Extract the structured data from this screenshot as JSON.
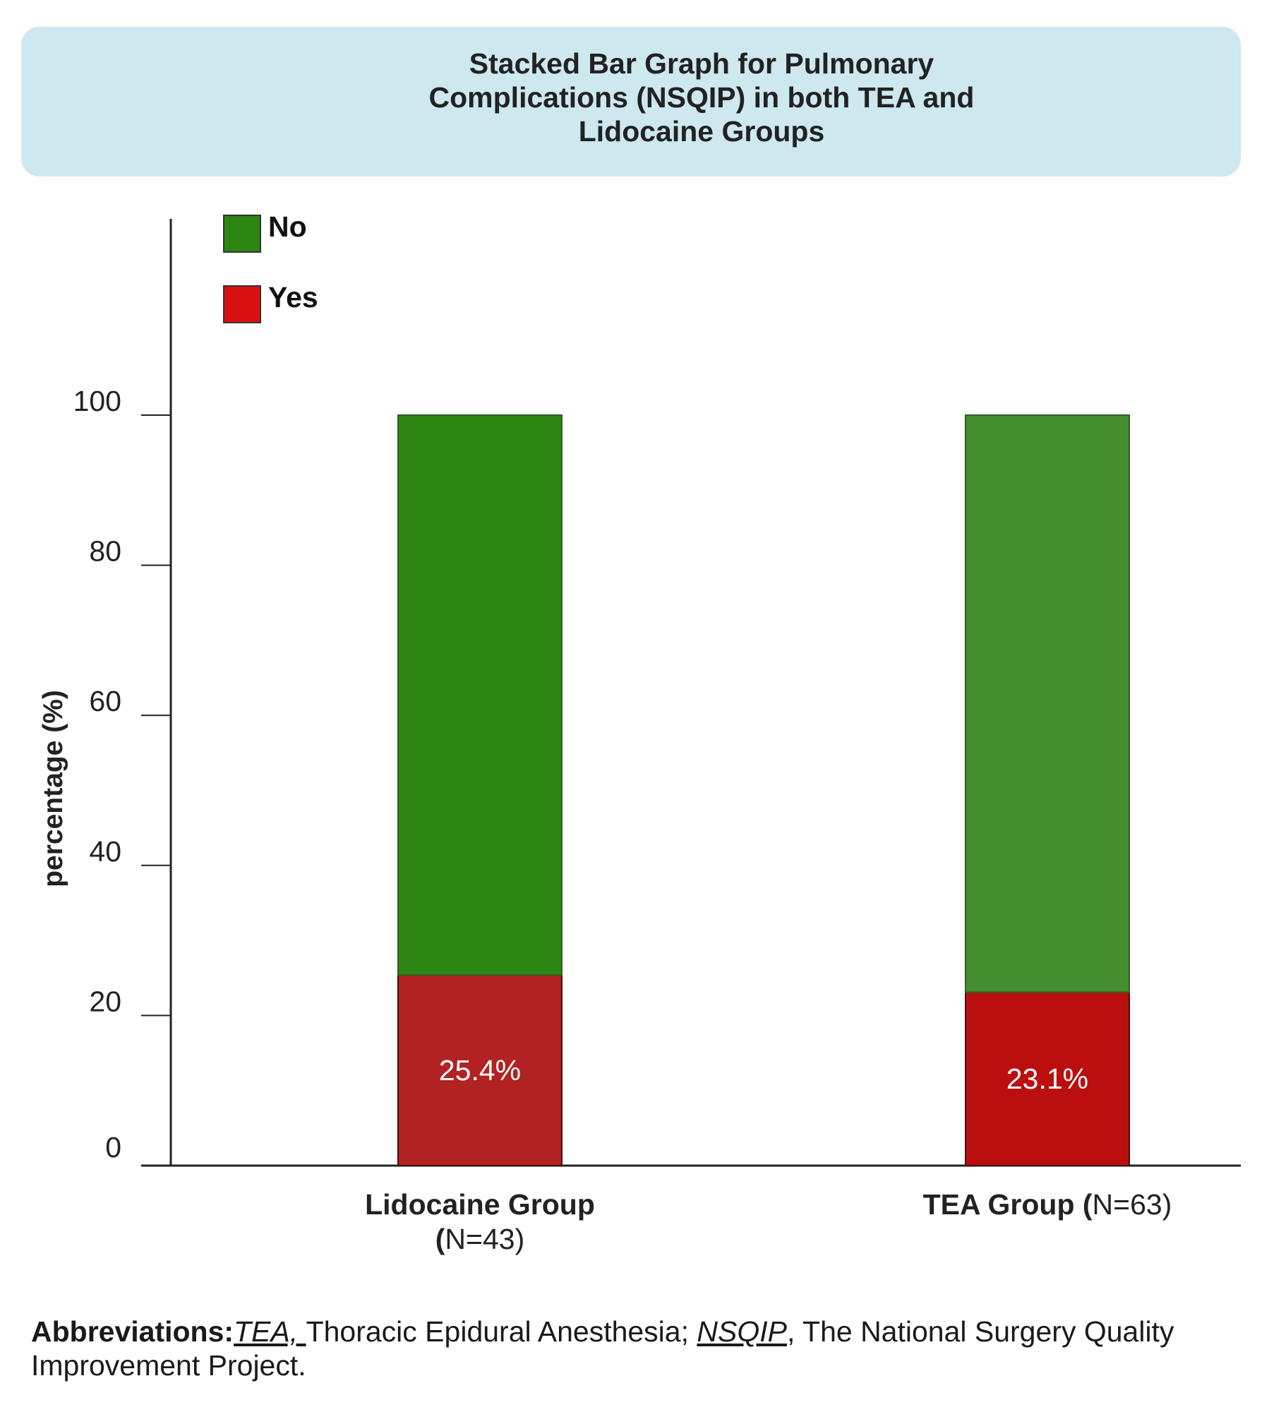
{
  "chart_data": {
    "type": "bar",
    "stacked": true,
    "title_lines": [
      "Stacked Bar Graph for Pulmonary",
      "Complications (NSQIP)  in both TEA and",
      "Lidocaine Groups"
    ],
    "ylabel": "percentage  (%)",
    "ylim": [
      0,
      100
    ],
    "yticks": [
      0,
      20,
      40,
      60,
      80,
      100
    ],
    "categories": [
      {
        "name": "Lidocaine Group",
        "n": "N=43"
      },
      {
        "name": "TEA Group",
        "n": "N=63"
      }
    ],
    "series": [
      {
        "name": "Yes",
        "values": [
          25.4,
          23.1
        ],
        "labels": [
          "25.4%",
          "23.1%"
        ],
        "colors": [
          "#b22222",
          "#bb0f0f"
        ]
      },
      {
        "name": "No",
        "values": [
          74.6,
          76.9
        ],
        "colors": [
          "#2d8512",
          "#458f31"
        ]
      }
    ],
    "legend": [
      {
        "name": "No",
        "color": "#2d8512"
      },
      {
        "name": "Yes",
        "color": "#d81010"
      }
    ],
    "legend_placement": "top-left",
    "grid": false
  },
  "footnote": {
    "lead": "Abbreviations:",
    "abbr1": "TEA, ",
    "def1": "Thoracic Epidural Anesthesia; ",
    "abbr2": "NSQIP",
    "def2": ", The National Surgery Quality Improvement Project."
  }
}
